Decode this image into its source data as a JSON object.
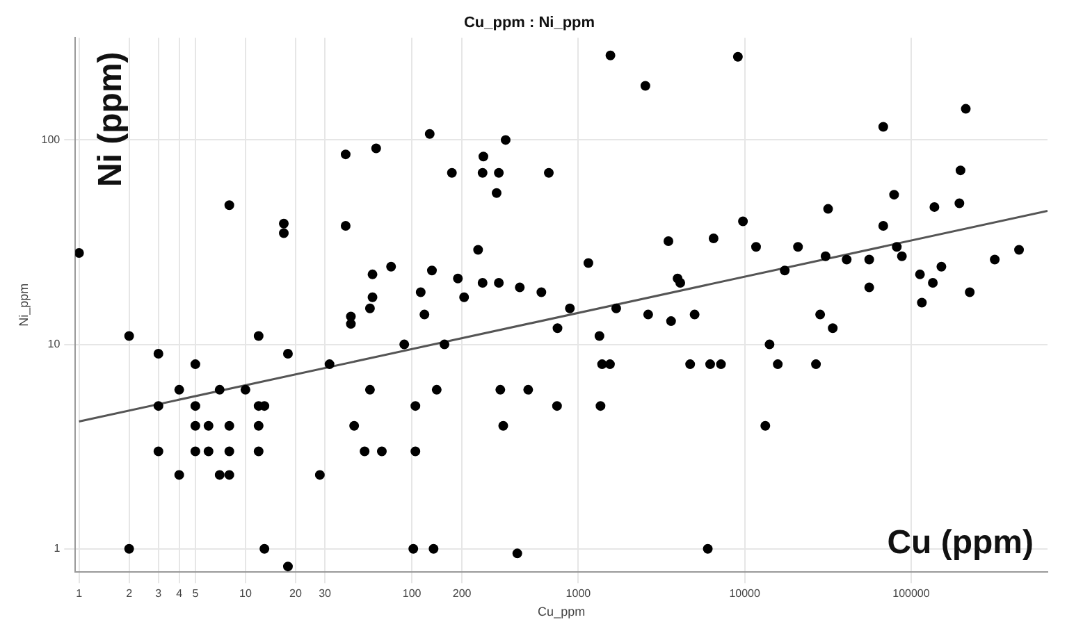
{
  "chart_data": {
    "type": "scatter",
    "title": "Cu_ppm : Ni_ppm",
    "xlabel": "Cu_ppm",
    "ylabel": "Ni_ppm",
    "annotations": [
      "Ni (ppm)",
      "Cu (ppm)"
    ],
    "log": "xy",
    "grid": true,
    "marker": "circle",
    "legend": false,
    "xlim": [
      0.95,
      660000
    ],
    "xticks": [
      1,
      2,
      3,
      4,
      5,
      10,
      20,
      30,
      100,
      200,
      1000,
      10000,
      100000
    ],
    "ylim": [
      0.77,
      316
    ],
    "yticks": [
      1,
      10,
      100
    ],
    "series": [
      {
        "color": "#000000",
        "x": [
          1,
          2,
          2,
          3,
          3,
          3,
          4,
          4,
          5,
          5,
          5,
          5,
          6,
          6,
          7,
          7,
          8,
          8,
          8,
          8,
          10,
          12,
          12,
          12,
          12,
          13,
          13,
          17,
          17,
          18,
          18,
          28,
          32,
          40,
          40,
          43,
          43,
          45,
          52,
          56,
          56,
          58,
          58,
          61,
          66,
          75,
          90,
          102,
          105,
          105,
          113,
          119,
          128,
          132,
          135,
          141,
          157,
          174,
          189,
          206,
          250,
          266,
          266,
          269,
          323,
          333,
          333,
          340,
          354,
          366,
          430,
          445,
          500,
          600,
          665,
          745,
          750,
          890,
          1150,
          1340,
          1360,
          1390,
          1550,
          1560,
          1690,
          2530,
          2630,
          3480,
          3610,
          3950,
          4100,
          4700,
          5000,
          6000,
          6200,
          6500,
          7200,
          9100,
          9760,
          11700,
          13300,
          14100,
          15800,
          17400,
          20900,
          26800,
          28400,
          30600,
          31700,
          33800,
          41000,
          56000,
          56000,
          68000,
          68000,
          79000,
          82000,
          88000,
          113000,
          116000,
          135000,
          138000,
          152000,
          195000,
          198000,
          213000,
          225000,
          318000,
          445000
        ],
        "values": [
          28,
          11,
          1,
          9,
          5,
          3,
          6,
          2.3,
          8,
          5,
          4,
          3,
          4,
          3,
          6,
          2.3,
          48,
          4,
          3,
          2.3,
          6,
          11,
          5,
          4,
          3,
          5,
          1,
          39,
          35,
          9,
          0.82,
          2.3,
          8,
          85,
          38,
          13.7,
          12.6,
          4,
          3,
          15,
          6,
          22,
          17,
          91,
          3,
          24,
          10,
          1,
          5,
          3,
          18,
          14,
          107,
          23,
          1,
          6,
          10,
          69,
          21,
          17,
          29,
          20,
          69,
          83,
          55,
          69,
          20,
          6,
          4,
          100,
          0.95,
          19,
          6,
          18,
          69,
          5,
          12,
          15,
          25,
          11,
          5,
          8,
          8,
          259,
          15,
          184,
          14,
          32,
          13,
          21,
          20,
          8,
          14,
          1,
          8,
          33,
          8,
          255,
          40,
          30,
          4,
          10,
          8,
          23,
          30,
          8,
          14,
          27,
          46,
          12,
          26,
          26,
          19,
          116,
          38,
          54,
          30,
          27,
          22,
          16,
          20,
          47,
          24,
          49,
          71,
          142,
          18,
          26,
          29
        ]
      },
      {
        "type": "line",
        "color": "#555555",
        "x": [
          1,
          660000
        ],
        "values": [
          4.2,
          45
        ],
        "marker": "none"
      }
    ]
  }
}
